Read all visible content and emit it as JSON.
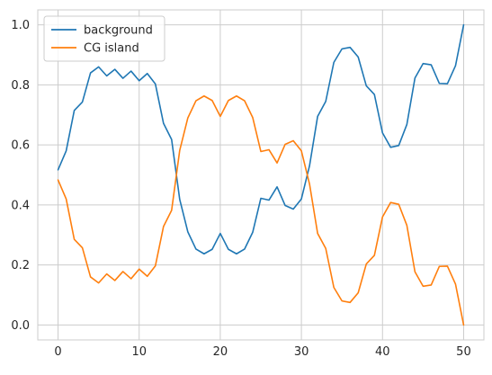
{
  "chart_data": {
    "type": "line",
    "title": "",
    "xlabel": "",
    "ylabel": "",
    "xlim": [
      -2.5,
      52.5
    ],
    "ylim": [
      -0.05,
      1.05
    ],
    "xticks": [
      0,
      10,
      20,
      30,
      40,
      50
    ],
    "xtick_labels": [
      "0",
      "10",
      "20",
      "30",
      "40",
      "50"
    ],
    "yticks": [
      0.0,
      0.2,
      0.4,
      0.6,
      0.8,
      1.0
    ],
    "ytick_labels": [
      "0.0",
      "0.2",
      "0.4",
      "0.6",
      "0.8",
      "1.0"
    ],
    "grid": true,
    "legend_position": "upper-left",
    "x": [
      0,
      1,
      2,
      3,
      4,
      5,
      6,
      7,
      8,
      9,
      10,
      11,
      12,
      13,
      14,
      15,
      16,
      17,
      18,
      19,
      20,
      21,
      22,
      23,
      24,
      25,
      26,
      27,
      28,
      29,
      30,
      31,
      32,
      33,
      34,
      35,
      36,
      37,
      38,
      39,
      40,
      41,
      42,
      43,
      44,
      45,
      46,
      47,
      48,
      49,
      50
    ],
    "series": [
      {
        "name": "background",
        "color": "#1f77b4",
        "values": [
          0.517,
          0.58,
          0.715,
          0.743,
          0.84,
          0.86,
          0.83,
          0.852,
          0.822,
          0.846,
          0.814,
          0.838,
          0.803,
          0.672,
          0.618,
          0.418,
          0.31,
          0.253,
          0.237,
          0.252,
          0.305,
          0.252,
          0.237,
          0.253,
          0.309,
          0.422,
          0.416,
          0.46,
          0.398,
          0.386,
          0.42,
          0.53,
          0.695,
          0.745,
          0.875,
          0.92,
          0.925,
          0.893,
          0.797,
          0.768,
          0.64,
          0.592,
          0.598,
          0.668,
          0.823,
          0.871,
          0.867,
          0.805,
          0.804,
          0.864,
          1.0
        ]
      },
      {
        "name": "CG island",
        "color": "#ff7f0e",
        "values": [
          0.483,
          0.42,
          0.285,
          0.257,
          0.16,
          0.14,
          0.17,
          0.148,
          0.178,
          0.154,
          0.186,
          0.162,
          0.197,
          0.328,
          0.382,
          0.582,
          0.69,
          0.747,
          0.763,
          0.748,
          0.695,
          0.748,
          0.763,
          0.747,
          0.691,
          0.578,
          0.584,
          0.54,
          0.602,
          0.614,
          0.58,
          0.47,
          0.305,
          0.255,
          0.125,
          0.08,
          0.075,
          0.107,
          0.203,
          0.232,
          0.36,
          0.408,
          0.402,
          0.332,
          0.177,
          0.129,
          0.133,
          0.195,
          0.196,
          0.136,
          0.0
        ]
      }
    ]
  }
}
